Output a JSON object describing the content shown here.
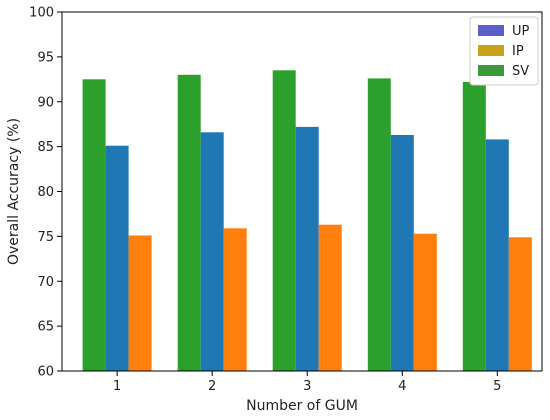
{
  "chart_data": {
    "type": "bar",
    "title": "",
    "xlabel": "Number of GUM",
    "ylabel": "Overall Accuracy (%)",
    "categories": [
      "1",
      "2",
      "3",
      "4",
      "5"
    ],
    "yticks": [
      "60",
      "65",
      "70",
      "75",
      "80",
      "85",
      "90",
      "95",
      "100"
    ],
    "ylim": [
      60,
      100
    ],
    "grid": false,
    "legend_position": "top-right",
    "bar_order": [
      "SV",
      "UP",
      "IP"
    ],
    "series": [
      {
        "name": "UP",
        "color": "#1f77b4",
        "legend_color": "#5b5fc7",
        "values": [
          85.1,
          86.6,
          87.2,
          86.3,
          85.8
        ]
      },
      {
        "name": "IP",
        "color": "#ff7f0e",
        "legend_color": "#c9a21a",
        "values": [
          75.1,
          75.9,
          76.3,
          75.3,
          74.9
        ]
      },
      {
        "name": "SV",
        "color": "#2ca02c",
        "legend_color": "#3a9a3a",
        "values": [
          92.5,
          93.0,
          93.5,
          92.6,
          92.2
        ]
      }
    ]
  }
}
